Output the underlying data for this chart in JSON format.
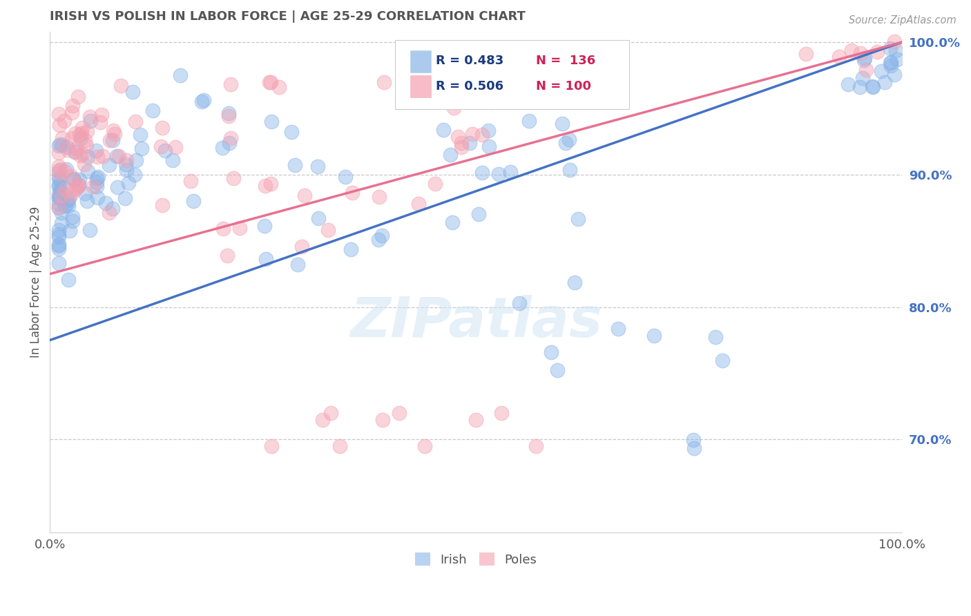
{
  "title": "IRISH VS POLISH IN LABOR FORCE | AGE 25-29 CORRELATION CHART",
  "source_text": "Source: ZipAtlas.com",
  "ylabel": "In Labor Force | Age 25-29",
  "x_min": 0.0,
  "x_max": 1.0,
  "y_min": 0.63,
  "y_max": 1.008,
  "y_ticks_right": [
    0.7,
    0.8,
    0.9,
    1.0
  ],
  "y_tick_labels_right": [
    "70.0%",
    "80.0%",
    "90.0%",
    "100.0%"
  ],
  "irish_color": "#89b4e8",
  "polish_color": "#f4a0b0",
  "irish_line_color": "#4472c4",
  "polish_line_color": "#e87090",
  "legend_label_irish": "Irish",
  "legend_label_polish": "Poles",
  "title_color": "#555555",
  "axis_label_color": "#555555",
  "tick_color_right": "#4472c4",
  "watermark": "ZIPatlas",
  "background_color": "#ffffff",
  "grid_color": "#bbbbbb",
  "irish_R": 0.483,
  "irish_N": 136,
  "polish_R": 0.506,
  "polish_N": 100,
  "irish_line_start_y": 0.775,
  "irish_line_end_y": 1.0,
  "polish_line_start_y": 0.825,
  "polish_line_end_y": 1.0
}
